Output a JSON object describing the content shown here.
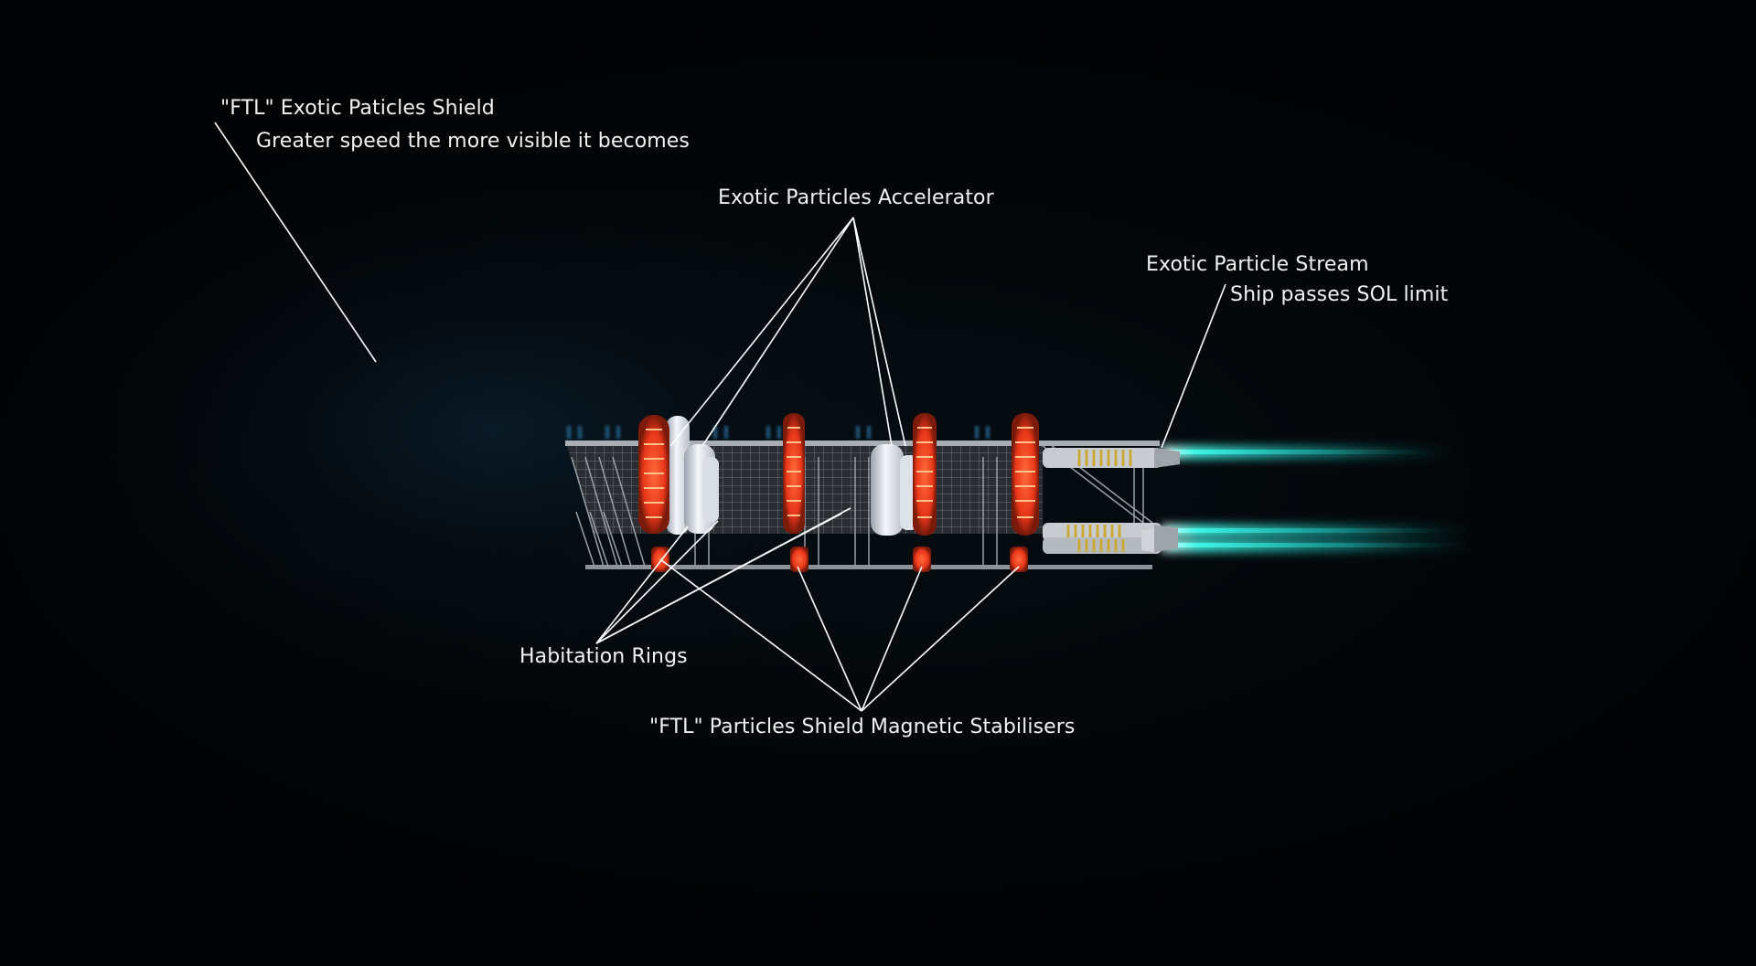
{
  "labels": {
    "shield_title": "\"FTL\" Exotic Paticles Shield",
    "shield_note": "Greater speed the more visible it becomes",
    "accelerator": "Exotic Particles Accelerator",
    "stream_title": "Exotic Particle Stream",
    "stream_note": "Ship passes SOL limit",
    "habitation": "Habitation Rings",
    "stabilisers": "\"FTL\" Particles Shield Magnetic Stabilisers"
  },
  "colors": {
    "leader_line": "#ffffff",
    "ring_glow": "#ff4a1c",
    "ring_body": "#e8ecf2",
    "frame": "#8a9096",
    "exhaust": "#3ff5e6",
    "label_text": "#f2f2f2"
  }
}
